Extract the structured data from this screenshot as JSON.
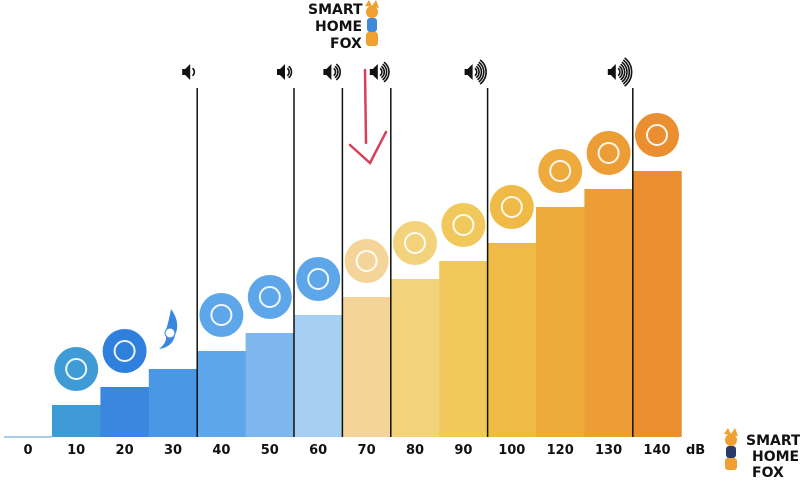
{
  "chart_data": {
    "type": "bar",
    "title": "",
    "xlabel": "",
    "ylabel": "",
    "unit_label": "dB",
    "categories": [
      "0",
      "10",
      "20",
      "30",
      "40",
      "50",
      "60",
      "70",
      "80",
      "90",
      "100",
      "120",
      "130",
      "140"
    ],
    "values": [
      0,
      10,
      20,
      30,
      40,
      50,
      60,
      70,
      80,
      90,
      100,
      120,
      130,
      140
    ],
    "colors": [
      "#a8cde8",
      "#3f9bd6",
      "#3b86df",
      "#4a98e5",
      "#5ea6ea",
      "#7db7ee",
      "#a7cff4",
      "#f5d499",
      "#f3d27c",
      "#f0c85c",
      "#efbb46",
      "#eeab3c",
      "#ed9d35",
      "#eb8e30"
    ],
    "icons": [
      "",
      "lungs-icon",
      "leaves-icon",
      "ear-icon",
      "fridge-icon",
      "rain-icon",
      "chat-icon",
      "washing-machine-icon",
      "piano-icon",
      "hair-dryer-icon",
      "coffee-machine-icon",
      "trombone-icon",
      "police-car-icon",
      "fireworks-icon"
    ],
    "volume_markers": [
      {
        "after": "30",
        "level": 1
      },
      {
        "after": "50",
        "level": 2
      },
      {
        "after": "60",
        "level": 3
      },
      {
        "after": "70",
        "level": 4
      },
      {
        "after": "90",
        "level": 5
      },
      {
        "after": "130",
        "level": 6
      }
    ],
    "annotation": "red arrow pointing down at 70",
    "ylim": [
      0,
      140
    ]
  },
  "logo": {
    "line1": "SMART",
    "line2": "HOME",
    "line3": "FOX"
  },
  "accent": "#d8405a"
}
